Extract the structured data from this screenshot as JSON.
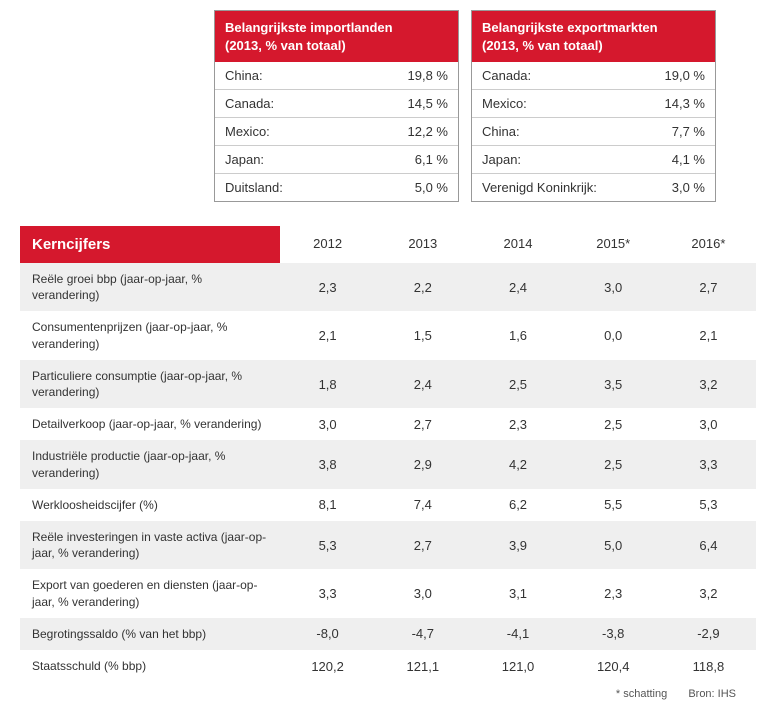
{
  "import_table": {
    "header_line1": "Belangrijkste importlanden",
    "header_line2": "(2013, % van totaal)",
    "rows": [
      {
        "country": "China:",
        "value": "19,8 %"
      },
      {
        "country": "Canada:",
        "value": "14,5 %"
      },
      {
        "country": "Mexico:",
        "value": "12,2 %"
      },
      {
        "country": "Japan:",
        "value": "6,1 %"
      },
      {
        "country": "Duitsland:",
        "value": "5,0 %"
      }
    ]
  },
  "export_table": {
    "header_line1": "Belangrijkste exportmarkten",
    "header_line2": "(2013, % van totaal)",
    "rows": [
      {
        "country": "Canada:",
        "value": "19,0 %"
      },
      {
        "country": "Mexico:",
        "value": "14,3 %"
      },
      {
        "country": "China:",
        "value": "7,7 %"
      },
      {
        "country": "Japan:",
        "value": "4,1 %"
      },
      {
        "country": "Verenigd Koninkrijk:",
        "value": "3,0 %"
      }
    ]
  },
  "main_table": {
    "title": "Kerncijfers",
    "years": [
      "2012",
      "2013",
      "2014",
      "2015*",
      "2016*"
    ],
    "rows": [
      {
        "label": "Reële groei bbp (jaar-op-jaar, % verandering)",
        "values": [
          "2,3",
          "2,2",
          "2,4",
          "3,0",
          "2,7"
        ]
      },
      {
        "label": "Consumentenprijzen (jaar-op-jaar, % verandering)",
        "values": [
          "2,1",
          "1,5",
          "1,6",
          "0,0",
          "2,1"
        ]
      },
      {
        "label": "Particuliere consumptie (jaar-op-jaar, % verandering)",
        "values": [
          "1,8",
          "2,4",
          "2,5",
          "3,5",
          "3,2"
        ]
      },
      {
        "label": "Detailverkoop (jaar-op-jaar, % verandering)",
        "values": [
          "3,0",
          "2,7",
          "2,3",
          "2,5",
          "3,0"
        ]
      },
      {
        "label": "Industriële productie (jaar-op-jaar, % verandering)",
        "values": [
          "3,8",
          "2,9",
          "4,2",
          "2,5",
          "3,3"
        ]
      },
      {
        "label": "Werkloosheidscijfer (%)",
        "values": [
          "8,1",
          "7,4",
          "6,2",
          "5,5",
          "5,3"
        ]
      },
      {
        "label": "Reële investeringen in vaste activa (jaar-op-jaar, % verandering)",
        "values": [
          "5,3",
          "2,7",
          "3,9",
          "5,0",
          "6,4"
        ]
      },
      {
        "label": "Export van goederen en diensten (jaar-op-jaar, % verandering)",
        "values": [
          "3,3",
          "3,0",
          "3,1",
          "2,3",
          "3,2"
        ]
      },
      {
        "label": "Begrotingssaldo (% van het bbp)",
        "values": [
          "-8,0",
          "-4,7",
          "-4,1",
          "-3,8",
          "-2,9"
        ]
      },
      {
        "label": "Staatsschuld (% bbp)",
        "values": [
          "120,2",
          "121,1",
          "121,0",
          "120,4",
          "118,8"
        ]
      }
    ]
  },
  "footnote": {
    "estimate": "* schatting",
    "source": "Bron: IHS"
  },
  "colors": {
    "header_bg": "#d5182d",
    "header_text": "#ffffff",
    "row_alt": "#efefef",
    "border": "#cccccc",
    "text": "#333333"
  }
}
